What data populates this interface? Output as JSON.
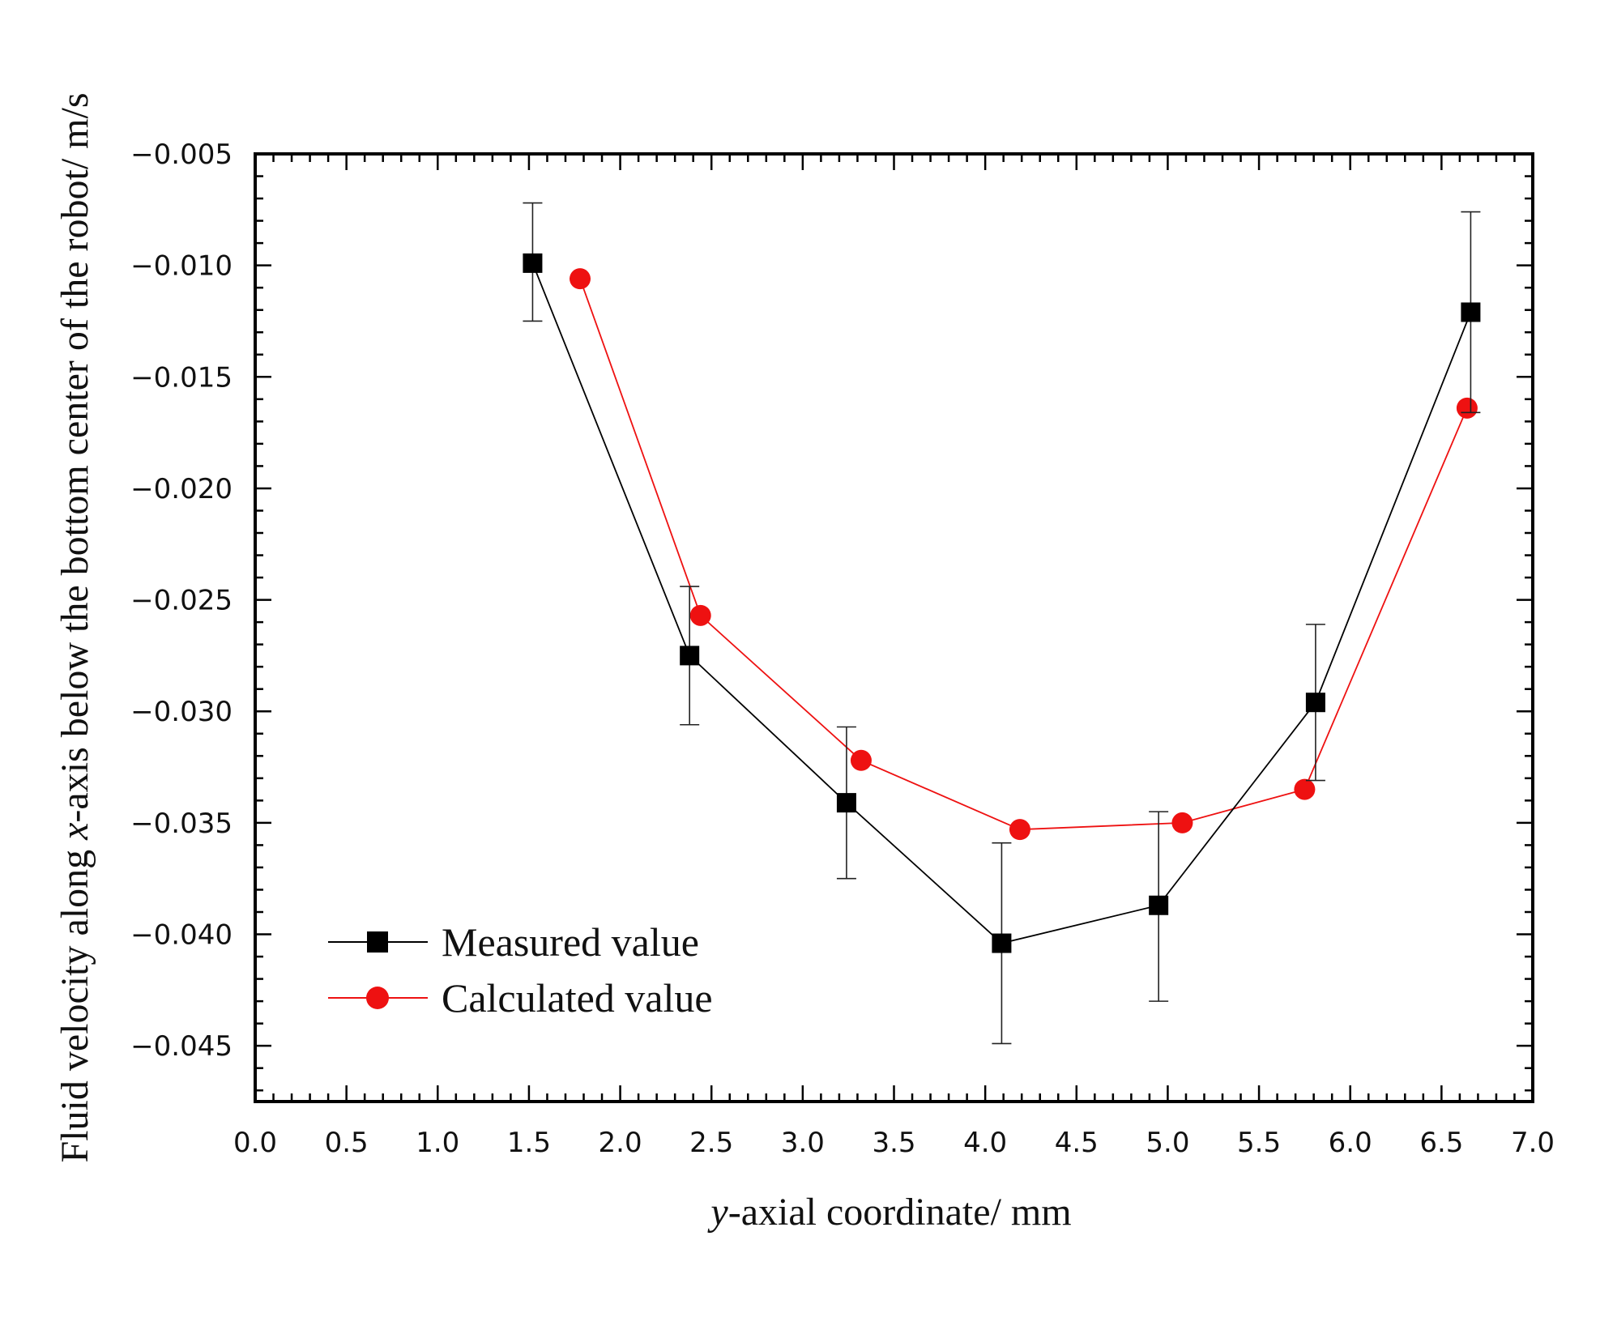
{
  "chart_data": {
    "type": "line",
    "xlabel": {
      "italic": "y",
      "rest": "-axial coordinate/ mm"
    },
    "ylabel": {
      "pre": "Fluid velocity along ",
      "italic": "x",
      "post": "-axis below the bottom center of the robot/ m/s"
    },
    "xlim": [
      0.0,
      7.0
    ],
    "ylim": [
      -0.0475,
      -0.005
    ],
    "x_ticks": [
      "0.0",
      "0.5",
      "1.0",
      "1.5",
      "2.0",
      "2.5",
      "3.0",
      "3.5",
      "4.0",
      "4.5",
      "5.0",
      "5.5",
      "6.0",
      "6.5",
      "7.0"
    ],
    "y_ticks": [
      "−0.005",
      "−0.010",
      "−0.015",
      "−0.020",
      "−0.025",
      "−0.030",
      "−0.035",
      "−0.040",
      "−0.045"
    ],
    "legend_position": "lower-left",
    "series": [
      {
        "name": "Measured value",
        "color": "#000000",
        "marker": "square",
        "points": [
          {
            "x": 1.52,
            "y": -0.0099,
            "err_low": -0.0125,
            "err_high": -0.0072
          },
          {
            "x": 2.38,
            "y": -0.0275,
            "err_low": -0.0306,
            "err_high": -0.0244
          },
          {
            "x": 3.24,
            "y": -0.0341,
            "err_low": -0.0375,
            "err_high": -0.0307
          },
          {
            "x": 4.09,
            "y": -0.0404,
            "err_low": -0.0449,
            "err_high": -0.0359
          },
          {
            "x": 4.95,
            "y": -0.0387,
            "err_low": -0.043,
            "err_high": -0.0345
          },
          {
            "x": 5.81,
            "y": -0.0296,
            "err_low": -0.0331,
            "err_high": -0.0261
          },
          {
            "x": 6.66,
            "y": -0.0121,
            "err_low": -0.0166,
            "err_high": -0.0076
          }
        ]
      },
      {
        "name": "Calculated value",
        "color": "#ee1111",
        "marker": "circle",
        "points": [
          {
            "x": 1.78,
            "y": -0.0106
          },
          {
            "x": 2.44,
            "y": -0.0257
          },
          {
            "x": 3.32,
            "y": -0.0322
          },
          {
            "x": 4.19,
            "y": -0.0353
          },
          {
            "x": 5.08,
            "y": -0.035
          },
          {
            "x": 5.75,
            "y": -0.0335
          },
          {
            "x": 6.64,
            "y": -0.0164
          }
        ]
      }
    ]
  }
}
